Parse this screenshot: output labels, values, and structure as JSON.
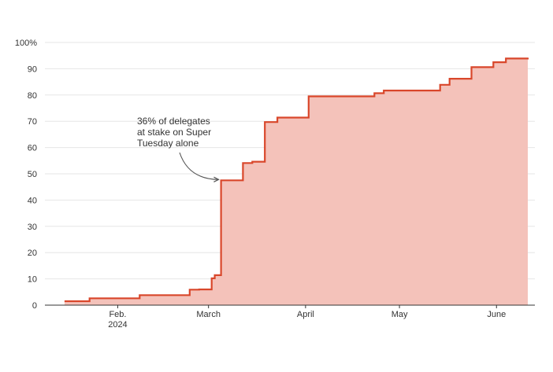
{
  "chart_data": {
    "type": "area",
    "title": "",
    "xlabel": "",
    "ylabel": "",
    "y_unit_suffix": "%",
    "ylim": [
      0,
      100
    ],
    "y_ticks": [
      0,
      10,
      20,
      30,
      40,
      50,
      60,
      70,
      80,
      90,
      100
    ],
    "y_tick_labels": [
      "0",
      "10",
      "20",
      "30",
      "40",
      "50",
      "60",
      "70",
      "80",
      "90",
      "100%"
    ],
    "x_ticks": [
      {
        "date": "2024-02-01",
        "label": "Feb.",
        "sublabel": "2024"
      },
      {
        "date": "2024-03-01",
        "label": "March",
        "sublabel": ""
      },
      {
        "date": "2024-04-01",
        "label": "April",
        "sublabel": ""
      },
      {
        "date": "2024-05-01",
        "label": "May",
        "sublabel": ""
      },
      {
        "date": "2024-06-01",
        "label": "June",
        "sublabel": ""
      }
    ],
    "x_range": [
      "2024-01-11",
      "2024-06-11"
    ],
    "grid": true,
    "colors": {
      "line": "#d9472b",
      "fill": "#f4c2ba",
      "grid": "#e6e6e6",
      "axis": "#333333",
      "text": "#333333"
    },
    "series": [
      {
        "x": [
          "2024-01-15",
          "2024-01-23",
          "2024-02-08",
          "2024-02-24",
          "2024-02-27",
          "2024-03-02",
          "2024-03-03",
          "2024-03-05",
          "2024-03-12",
          "2024-03-15",
          "2024-03-19",
          "2024-03-23",
          "2024-04-02",
          "2024-04-23",
          "2024-04-26",
          "2024-05-14",
          "2024-05-17",
          "2024-05-24",
          "2024-05-31",
          "2024-06-04",
          "2024-06-11"
        ],
        "values": [
          1.5,
          2.6,
          3.8,
          5.9,
          6.0,
          10.2,
          11.4,
          47.5,
          54.1,
          54.6,
          69.7,
          71.4,
          79.5,
          80.7,
          81.7,
          83.9,
          86.2,
          90.6,
          92.5,
          93.9,
          94.2
        ]
      }
    ],
    "annotation": {
      "text_lines": [
        "36% of delegates",
        "at stake on Super",
        "Tuesday alone"
      ],
      "target_date": "2024-03-05",
      "target_value": 47.5
    }
  }
}
